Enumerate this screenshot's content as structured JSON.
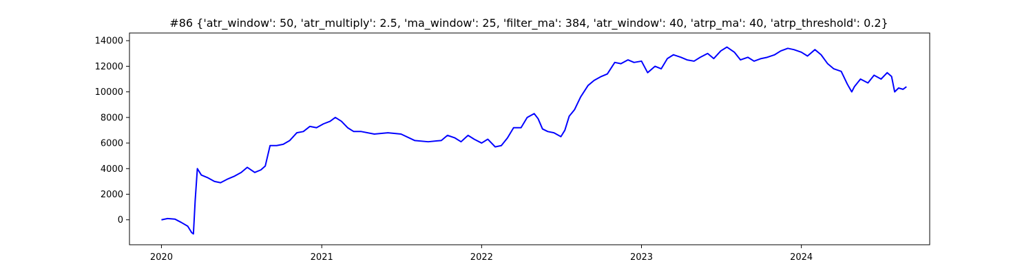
{
  "chart_data": {
    "type": "line",
    "title": "#86 {'atr_window': 50, 'atr_multiply': 2.5, 'ma_window': 25, 'filter_ma': 384, 'atr_window': 40, 'atrp_ma': 40, 'atrp_threshold': 0.2}",
    "xlabel": "",
    "ylabel": "",
    "x_type": "date",
    "xlim": [
      "2019-10-20",
      "2024-10-20"
    ],
    "ylim": [
      -1950,
      14600
    ],
    "x_ticks": [
      "2020",
      "2021",
      "2022",
      "2023",
      "2024"
    ],
    "y_ticks": [
      0,
      2000,
      4000,
      6000,
      8000,
      10000,
      12000,
      14000
    ],
    "grid": false,
    "legend": "none",
    "series_color": "#0000ff",
    "series": [
      {
        "points": [
          [
            "2020-01-01",
            0
          ],
          [
            "2020-01-15",
            100
          ],
          [
            "2020-02-01",
            50
          ],
          [
            "2020-02-15",
            -200
          ],
          [
            "2020-03-01",
            -500
          ],
          [
            "2020-03-10",
            -1000
          ],
          [
            "2020-03-14",
            -1100
          ],
          [
            "2020-03-18",
            1500
          ],
          [
            "2020-03-23",
            4000
          ],
          [
            "2020-04-01",
            3500
          ],
          [
            "2020-04-15",
            3300
          ],
          [
            "2020-05-01",
            3000
          ],
          [
            "2020-05-15",
            2900
          ],
          [
            "2020-06-01",
            3200
          ],
          [
            "2020-06-15",
            3400
          ],
          [
            "2020-07-01",
            3700
          ],
          [
            "2020-07-15",
            4100
          ],
          [
            "2020-08-01",
            3700
          ],
          [
            "2020-08-15",
            3900
          ],
          [
            "2020-08-25",
            4200
          ],
          [
            "2020-09-05",
            5800
          ],
          [
            "2020-09-20",
            5800
          ],
          [
            "2020-10-05",
            5900
          ],
          [
            "2020-10-20",
            6200
          ],
          [
            "2020-11-05",
            6800
          ],
          [
            "2020-11-20",
            6900
          ],
          [
            "2020-12-05",
            7300
          ],
          [
            "2020-12-20",
            7200
          ],
          [
            "2021-01-05",
            7500
          ],
          [
            "2021-01-20",
            7700
          ],
          [
            "2021-02-01",
            8000
          ],
          [
            "2021-02-15",
            7700
          ],
          [
            "2021-03-01",
            7200
          ],
          [
            "2021-03-15",
            6900
          ],
          [
            "2021-04-01",
            6900
          ],
          [
            "2021-05-01",
            6700
          ],
          [
            "2021-06-01",
            6800
          ],
          [
            "2021-07-01",
            6700
          ],
          [
            "2021-08-01",
            6200
          ],
          [
            "2021-09-01",
            6100
          ],
          [
            "2021-10-01",
            6200
          ],
          [
            "2021-10-15",
            6600
          ],
          [
            "2021-11-01",
            6400
          ],
          [
            "2021-11-15",
            6100
          ],
          [
            "2021-12-01",
            6600
          ],
          [
            "2021-12-15",
            6300
          ],
          [
            "2022-01-01",
            6000
          ],
          [
            "2022-01-15",
            6300
          ],
          [
            "2022-02-01",
            5700
          ],
          [
            "2022-02-15",
            5800
          ],
          [
            "2022-03-01",
            6400
          ],
          [
            "2022-03-15",
            7200
          ],
          [
            "2022-04-01",
            7200
          ],
          [
            "2022-04-15",
            8000
          ],
          [
            "2022-05-01",
            8300
          ],
          [
            "2022-05-10",
            7900
          ],
          [
            "2022-05-20",
            7100
          ],
          [
            "2022-06-01",
            6900
          ],
          [
            "2022-06-15",
            6800
          ],
          [
            "2022-07-01",
            6500
          ],
          [
            "2022-07-10",
            7000
          ],
          [
            "2022-07-20",
            8100
          ],
          [
            "2022-08-01",
            8600
          ],
          [
            "2022-08-15",
            9600
          ],
          [
            "2022-09-01",
            10500
          ],
          [
            "2022-09-15",
            10900
          ],
          [
            "2022-10-01",
            11200
          ],
          [
            "2022-10-15",
            11400
          ],
          [
            "2022-11-01",
            12300
          ],
          [
            "2022-11-15",
            12200
          ],
          [
            "2022-12-01",
            12500
          ],
          [
            "2022-12-15",
            12300
          ],
          [
            "2023-01-01",
            12400
          ],
          [
            "2023-01-15",
            11500
          ],
          [
            "2023-02-01",
            12000
          ],
          [
            "2023-02-15",
            11800
          ],
          [
            "2023-03-01",
            12600
          ],
          [
            "2023-03-15",
            12900
          ],
          [
            "2023-04-01",
            12700
          ],
          [
            "2023-04-15",
            12500
          ],
          [
            "2023-05-01",
            12400
          ],
          [
            "2023-05-15",
            12700
          ],
          [
            "2023-06-01",
            13000
          ],
          [
            "2023-06-15",
            12600
          ],
          [
            "2023-07-01",
            13200
          ],
          [
            "2023-07-15",
            13500
          ],
          [
            "2023-08-01",
            13100
          ],
          [
            "2023-08-15",
            12500
          ],
          [
            "2023-09-01",
            12700
          ],
          [
            "2023-09-15",
            12400
          ],
          [
            "2023-10-01",
            12600
          ],
          [
            "2023-10-15",
            12700
          ],
          [
            "2023-11-01",
            12900
          ],
          [
            "2023-11-15",
            13200
          ],
          [
            "2023-12-01",
            13400
          ],
          [
            "2023-12-15",
            13300
          ],
          [
            "2024-01-01",
            13100
          ],
          [
            "2024-01-15",
            12800
          ],
          [
            "2024-02-01",
            13300
          ],
          [
            "2024-02-15",
            12900
          ],
          [
            "2024-03-01",
            12200
          ],
          [
            "2024-03-15",
            11800
          ],
          [
            "2024-04-01",
            11600
          ],
          [
            "2024-04-15",
            10600
          ],
          [
            "2024-04-25",
            10000
          ],
          [
            "2024-05-01",
            10400
          ],
          [
            "2024-05-15",
            11000
          ],
          [
            "2024-06-01",
            10700
          ],
          [
            "2024-06-15",
            11300
          ],
          [
            "2024-07-01",
            11000
          ],
          [
            "2024-07-15",
            11500
          ],
          [
            "2024-07-25",
            11200
          ],
          [
            "2024-08-01",
            10000
          ],
          [
            "2024-08-10",
            10300
          ],
          [
            "2024-08-20",
            10200
          ],
          [
            "2024-08-28",
            10400
          ]
        ]
      }
    ]
  }
}
